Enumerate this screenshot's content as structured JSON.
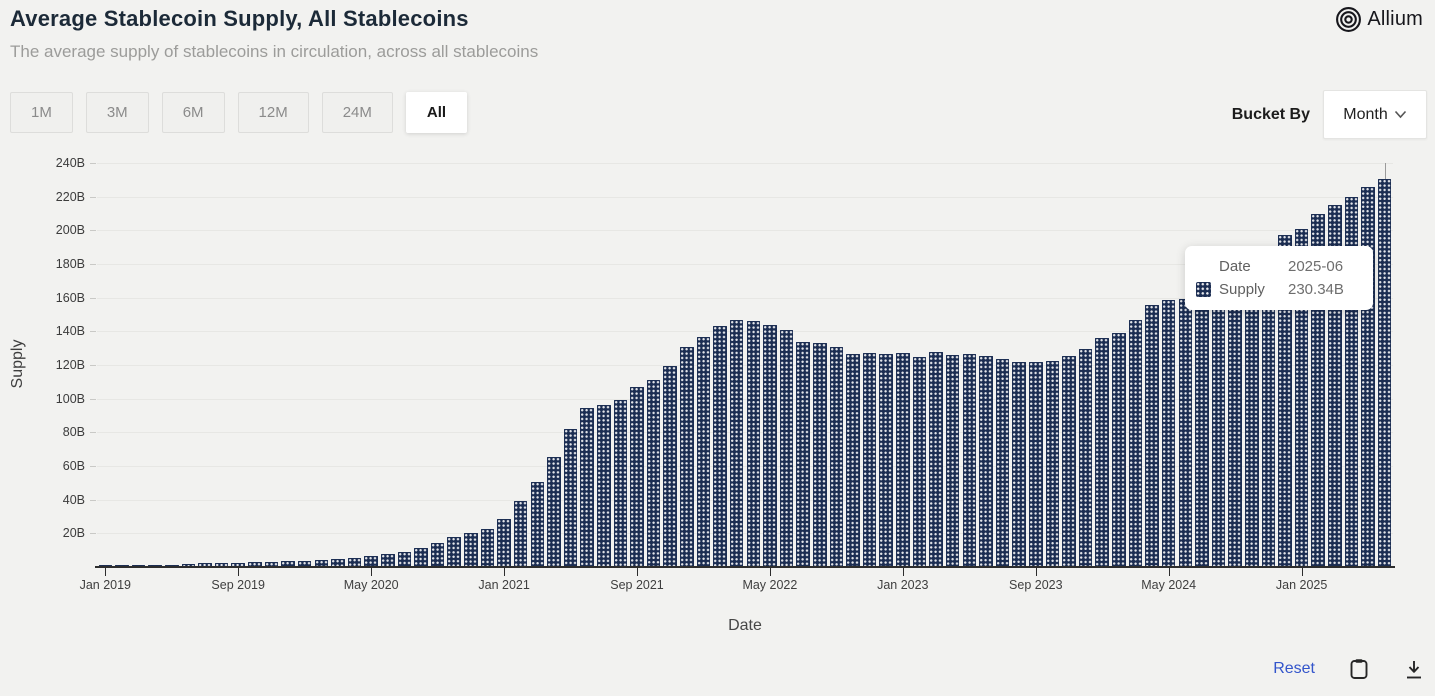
{
  "header": {
    "title": "Average Stablecoin Supply, All Stablecoins",
    "subtitle": "The average supply of stablecoins in circulation, across all stablecoins",
    "brand": "Allium"
  },
  "controls": {
    "ranges": [
      {
        "label": "1M",
        "active": false
      },
      {
        "label": "3M",
        "active": false
      },
      {
        "label": "6M",
        "active": false
      },
      {
        "label": "12M",
        "active": false
      },
      {
        "label": "24M",
        "active": false
      },
      {
        "label": "All",
        "active": true
      }
    ],
    "bucket_by_label": "Bucket By",
    "bucket_value": "Month"
  },
  "tooltip": {
    "date_label": "Date",
    "date_value": "2025-06",
    "supply_label": "Supply",
    "supply_value": "230.34B",
    "hover_index": 77
  },
  "footer": {
    "reset_label": "Reset"
  },
  "colors": {
    "bar": "#1b2d52",
    "link": "#3355cb",
    "background": "#f2f2f0"
  },
  "chart_data": {
    "type": "bar",
    "title": "Average Stablecoin Supply, All Stablecoins",
    "xlabel": "Date",
    "ylabel": "Supply",
    "unit": "B (billions USD)",
    "ylim": [
      0,
      240
    ],
    "grid": "horizontal",
    "y_ticks": [
      20,
      40,
      60,
      80,
      100,
      120,
      140,
      160,
      180,
      200,
      220,
      240
    ],
    "y_tick_suffix": "B",
    "x_tick_indices": [
      0,
      8,
      16,
      24,
      32,
      40,
      48,
      56,
      64,
      72
    ],
    "x_tick_labels": [
      "Jan 2019",
      "Sep 2019",
      "May 2020",
      "Jan 2021",
      "Sep 2021",
      "May 2022",
      "Jan 2023",
      "Sep 2023",
      "May 2024",
      "Jan 2025"
    ],
    "x": [
      "2019-01",
      "2019-02",
      "2019-03",
      "2019-04",
      "2019-05",
      "2019-06",
      "2019-07",
      "2019-08",
      "2019-09",
      "2019-10",
      "2019-11",
      "2019-12",
      "2020-01",
      "2020-02",
      "2020-03",
      "2020-04",
      "2020-05",
      "2020-06",
      "2020-07",
      "2020-08",
      "2020-09",
      "2020-10",
      "2020-11",
      "2020-12",
      "2021-01",
      "2021-02",
      "2021-03",
      "2021-04",
      "2021-05",
      "2021-06",
      "2021-07",
      "2021-08",
      "2021-09",
      "2021-10",
      "2021-11",
      "2021-12",
      "2022-01",
      "2022-02",
      "2022-03",
      "2022-04",
      "2022-05",
      "2022-06",
      "2022-07",
      "2022-08",
      "2022-09",
      "2022-10",
      "2022-11",
      "2022-12",
      "2023-01",
      "2023-02",
      "2023-03",
      "2023-04",
      "2023-05",
      "2023-06",
      "2023-07",
      "2023-08",
      "2023-09",
      "2023-10",
      "2023-11",
      "2023-12",
      "2024-01",
      "2024-02",
      "2024-03",
      "2024-04",
      "2024-05",
      "2024-06",
      "2024-07",
      "2024-08",
      "2024-09",
      "2024-10",
      "2024-11",
      "2024-12",
      "2025-01",
      "2025-02",
      "2025-03",
      "2025-04",
      "2025-05",
      "2025-06"
    ],
    "values": [
      1.0,
      1.1,
      1.2,
      1.4,
      1.5,
      1.8,
      2.2,
      2.4,
      2.6,
      2.8,
      3.1,
      3.4,
      3.7,
      4.1,
      4.6,
      5.5,
      6.5,
      7.5,
      8.9,
      11.3,
      14.5,
      17.9,
      20.3,
      22.7,
      28.8,
      39.5,
      50.4,
      65.1,
      82.3,
      94.4,
      96.5,
      99.1,
      107.1,
      111.2,
      119.7,
      130.8,
      136.5,
      143.3,
      146.5,
      146.4,
      143.5,
      140.9,
      133.8,
      133.2,
      130.8,
      126.8,
      127.2,
      126.8,
      127.2,
      124.7,
      127.8,
      126.2,
      126.4,
      125.3,
      123.3,
      122.1,
      122.1,
      122.3,
      125.3,
      129.8,
      135.9,
      139.3,
      147.0,
      155.6,
      158.5,
      159.1,
      157.5,
      158.8,
      159.5,
      172.0,
      185.0,
      197.1,
      201.0,
      210.0,
      215.2,
      219.7,
      225.8,
      230.34
    ]
  }
}
